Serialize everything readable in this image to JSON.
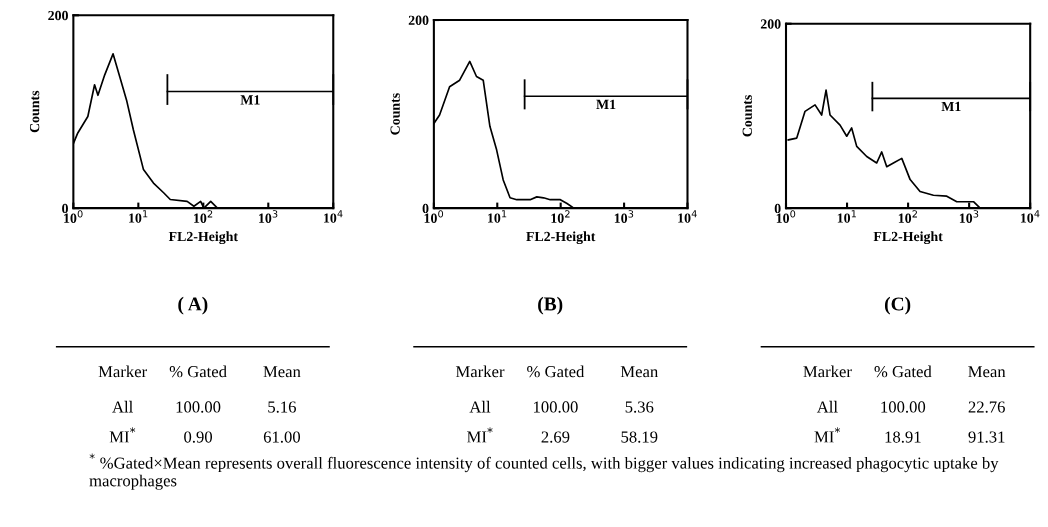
{
  "chart_data": [
    {
      "type": "line",
      "title": "( A)",
      "xlabel": "FL2-Height",
      "ylabel": "Counts",
      "log": "x",
      "series": [
        {
          "color": "#000000",
          "x": [
            1.0,
            1.17,
            1.67,
            2.12,
            2.39,
            3.03,
            4.08,
            5.19,
            6.59,
            8.4,
            12.0,
            17.1,
            24.5,
            31.0,
            56.4,
            71.6,
            91,
            102,
            130,
            165,
            10000
          ],
          "values": [
            67,
            78,
            95,
            128,
            117,
            138,
            160,
            136,
            112,
            81,
            40,
            26,
            16,
            9,
            7,
            2,
            7,
            0,
            7,
            0,
            0
          ]
        },
        {
          "name": "M1",
          "color": "#000000",
          "x": [
            28,
            10000
          ],
          "values": [
            121,
            121
          ]
        }
      ],
      "xlim": [
        1,
        10000
      ],
      "xticks": [
        {
          "value": 1,
          "label": "10$^{0}$"
        },
        {
          "value": 10,
          "label": "10$^{1}$"
        },
        {
          "value": 100,
          "label": "10$^{2}$"
        },
        {
          "value": 1000,
          "label": "10$^{3}$"
        },
        {
          "value": 10000,
          "label": "10$^{4}$"
        }
      ],
      "ylim": [
        0,
        200
      ],
      "yticks": [
        0,
        200
      ],
      "annotations": [
        "Marker",
        "% Gated",
        "Mean",
        "All",
        "100.00",
        "5.16",
        "MI$^{*}$",
        "0.90",
        "61.00"
      ]
    },
    {
      "type": "line",
      "title": "(B)",
      "xlabel": "FL2-Height",
      "ylabel": "Counts",
      "log": "x",
      "series": [
        {
          "color": "#000000",
          "x": [
            1.0,
            1.23,
            1.77,
            2.55,
            3.68,
            4.7,
            6.0,
            7.65,
            9.76,
            12.4,
            15.9,
            20.3,
            33,
            42,
            53.7,
            68.5,
            98.8,
            126,
            161,
            10000
          ],
          "values": [
            90,
            99,
            129,
            136,
            156,
            140,
            136,
            87,
            62,
            30,
            11,
            9,
            9,
            12,
            11,
            9,
            9,
            5,
            0,
            0
          ]
        },
        {
          "name": "M1",
          "color": "#000000",
          "x": [
            27,
            10000
          ],
          "values": [
            119,
            119
          ]
        }
      ],
      "xlim": [
        1,
        10000
      ],
      "xticks": [
        {
          "value": 1,
          "label": "10$^{0}$"
        },
        {
          "value": 10,
          "label": "10$^{1}$"
        },
        {
          "value": 100,
          "label": "10$^{2}$"
        },
        {
          "value": 1000,
          "label": "10$^{3}$"
        },
        {
          "value": 10000,
          "label": "10$^{4}$"
        }
      ],
      "ylim": [
        0,
        200
      ],
      "yticks": [
        0,
        200
      ],
      "annotations": [
        "Marker",
        "% Gated",
        "Mean",
        "All",
        "100.00",
        "5.36",
        "MI$^{*}$",
        "2.69",
        "58.19"
      ]
    },
    {
      "type": "line",
      "title": "(C)",
      "xlabel": "FL2-Height",
      "ylabel": "Counts",
      "log": "x",
      "series": [
        {
          "color": "#000000",
          "x": [
            1.09,
            1.5,
            2.05,
            2.99,
            3.84,
            4.53,
            5.27,
            7.68,
            9.88,
            11.9,
            14.4,
            21.0,
            30.6,
            37.0,
            44.7,
            57.5,
            78.8,
            108,
            157,
            260,
            430,
            628,
            1178,
            1514,
            10000
          ],
          "values": [
            74,
            76,
            105,
            112,
            101,
            128,
            101,
            90,
            78,
            87,
            67,
            56,
            49,
            61,
            45,
            49,
            54,
            31,
            18,
            14,
            13,
            7,
            7,
            0,
            0
          ]
        },
        {
          "name": "M1",
          "color": "#000000",
          "x": [
            26,
            10000
          ],
          "values": [
            119,
            119
          ]
        }
      ],
      "xlim": [
        1,
        10000
      ],
      "xticks": [
        {
          "value": 1,
          "label": "10$^{0}$"
        },
        {
          "value": 10,
          "label": "10$^{1}$"
        },
        {
          "value": 100,
          "label": "10$^{2}$"
        },
        {
          "value": 1000,
          "label": "10$^{3}$"
        },
        {
          "value": 10000,
          "label": "10$^{4}$"
        }
      ],
      "ylim": [
        0,
        200
      ],
      "yticks": [
        0,
        200
      ],
      "annotations": [
        "Marker",
        "% Gated",
        "Mean",
        "All",
        "100.00",
        "22.76",
        "MI$^{*}$",
        "18.91",
        "91.31"
      ]
    },
    {
      "type": "other",
      "annotations": [
        "$^{*}$ %Gated×Mean represents overall fluorescence intensity of counted cells, with bigger values indicating increased phagocytic uptake by macrophages"
      ]
    }
  ]
}
